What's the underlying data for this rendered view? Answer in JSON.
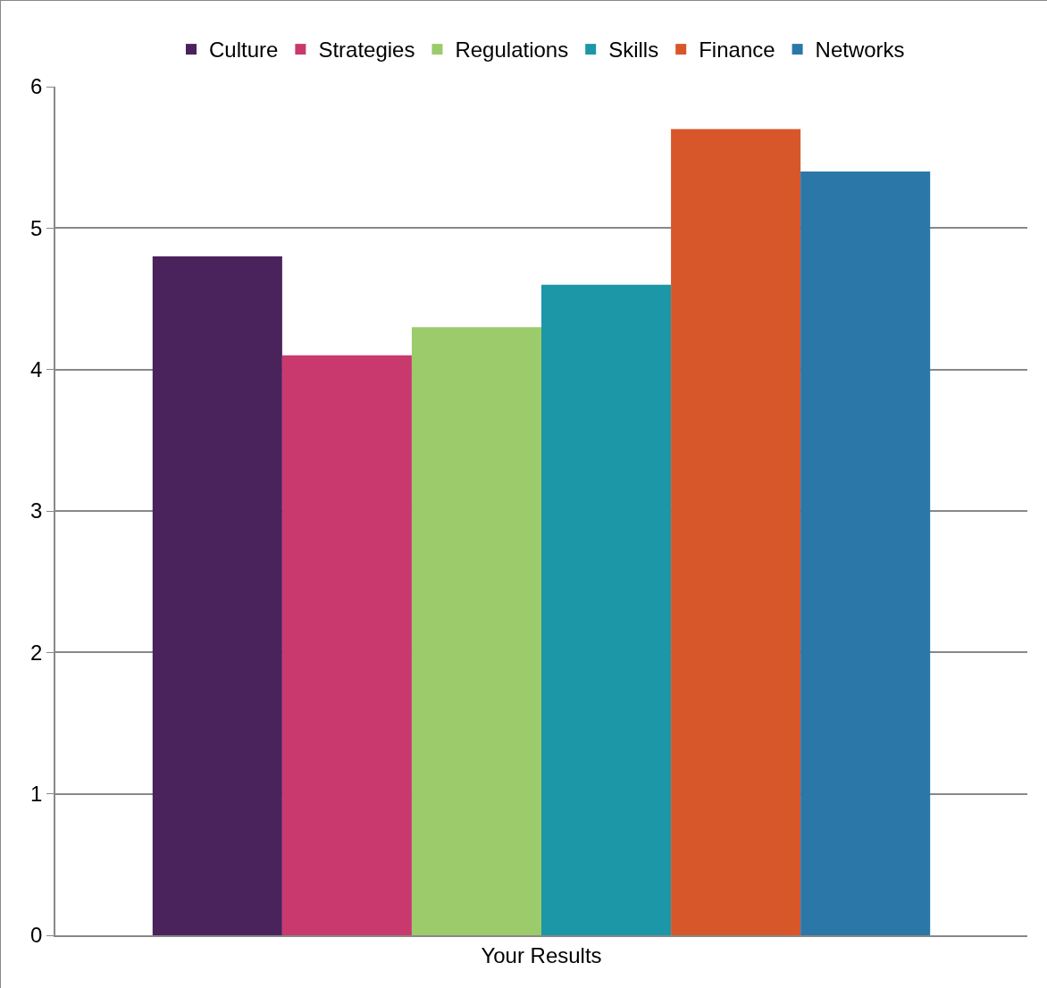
{
  "chart_data": {
    "type": "bar",
    "categories": [
      "Your Results"
    ],
    "series": [
      {
        "name": "Culture",
        "color": "#4a225c",
        "values": [
          4.8
        ]
      },
      {
        "name": "Strategies",
        "color": "#c9396d",
        "values": [
          4.1
        ]
      },
      {
        "name": "Regulations",
        "color": "#9bcb6a",
        "values": [
          4.3
        ]
      },
      {
        "name": "Skills",
        "color": "#1b97a8",
        "values": [
          4.6
        ]
      },
      {
        "name": "Finance",
        "color": "#d8572a",
        "values": [
          5.7
        ]
      },
      {
        "name": "Networks",
        "color": "#2a77a8",
        "values": [
          5.4
        ]
      }
    ],
    "ylim": [
      0,
      6
    ],
    "yticks": [
      0,
      1,
      2,
      3,
      4,
      5,
      6
    ],
    "grid": "y",
    "legend": "top"
  }
}
